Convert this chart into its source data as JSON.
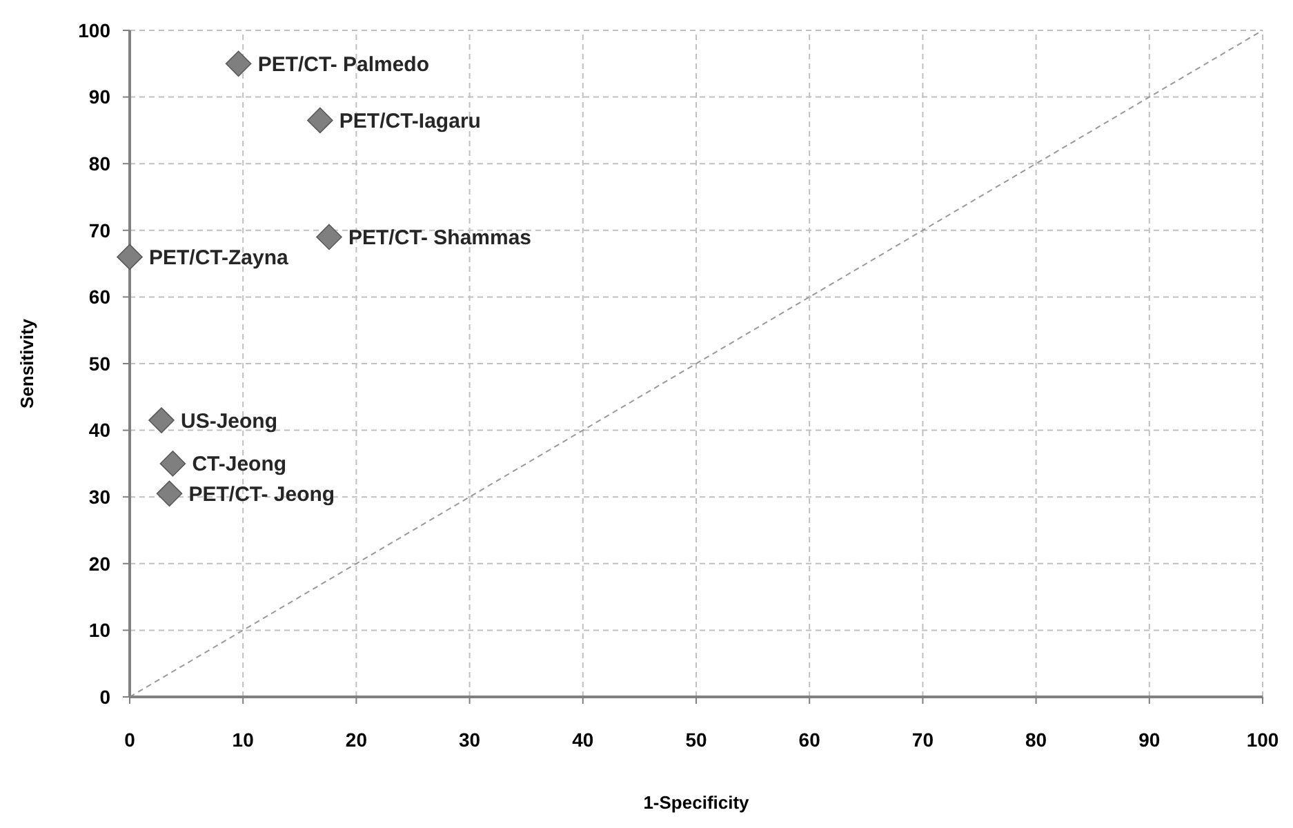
{
  "chart_data": {
    "type": "scatter",
    "xlabel": "1-Specificity",
    "ylabel": "Sensitivity",
    "xlim": [
      0,
      100
    ],
    "ylim": [
      0,
      100
    ],
    "xticks": [
      0,
      10,
      20,
      30,
      40,
      50,
      60,
      70,
      80,
      90,
      100
    ],
    "yticks": [
      0,
      10,
      20,
      30,
      40,
      50,
      60,
      70,
      80,
      90,
      100
    ],
    "grid": true,
    "marker": "diamond",
    "series": [
      {
        "color": "#7f7f7f",
        "x": [
          9.6,
          16.8,
          17.6,
          0,
          2.8,
          3.8,
          3.5
        ],
        "values": [
          95,
          86.5,
          69,
          66,
          41.5,
          35,
          30.5
        ]
      },
      {
        "type": "line",
        "color": "#999999",
        "line_style": "dashed",
        "marker": "none",
        "x": [
          0,
          100
        ],
        "values": [
          0,
          100
        ]
      }
    ],
    "annotations": [
      {
        "text": "PET/CT- Palmedo",
        "x": 9.6,
        "y": 95
      },
      {
        "text": "PET/CT-Iagaru",
        "x": 16.8,
        "y": 86.5
      },
      {
        "text": "PET/CT- Shammas",
        "x": 17.6,
        "y": 69
      },
      {
        "text": "PET/CT-Zayna",
        "x": 0,
        "y": 66
      },
      {
        "text": "US-Jeong",
        "x": 2.8,
        "y": 41.5
      },
      {
        "text": "CT-Jeong",
        "x": 3.8,
        "y": 35
      },
      {
        "text": "PET/CT- Jeong",
        "x": 3.5,
        "y": 30.5
      }
    ]
  }
}
